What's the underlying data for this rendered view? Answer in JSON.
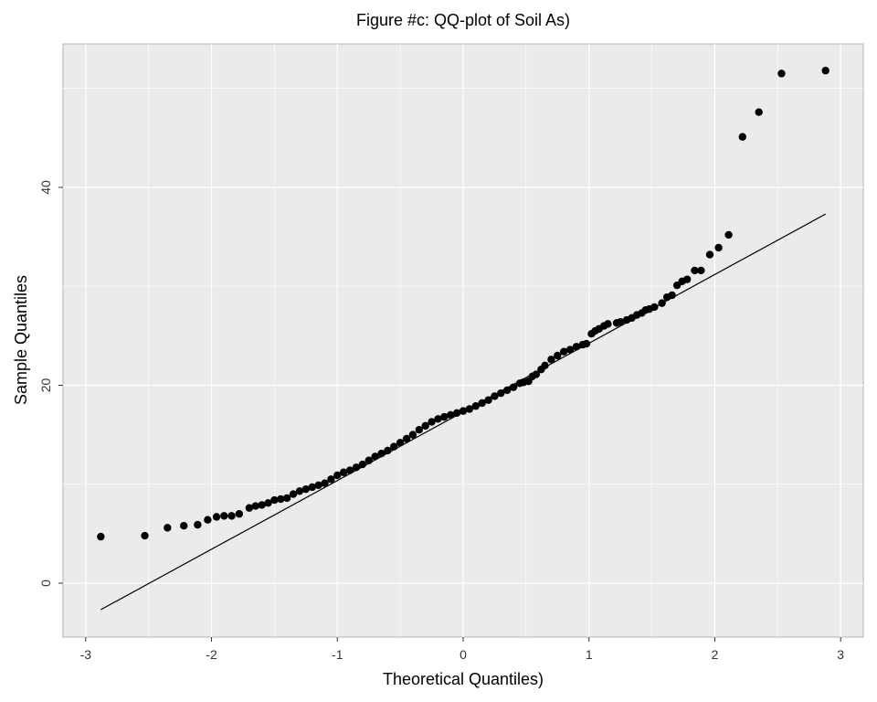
{
  "chart_data": {
    "type": "scatter",
    "title": "Figure #c: QQ-plot of Soil As)",
    "x_label": "Theoretical Quantiles)",
    "y_label": "Sample Quantiles",
    "xlim": [
      -3.18,
      3.18
    ],
    "ylim": [
      -5.45,
      54.5
    ],
    "xticks": [
      -3,
      -2,
      -1,
      0,
      1,
      2,
      3
    ],
    "yticks": [
      0,
      20,
      40
    ],
    "x_minor_grid": [
      -2.5,
      -1.5,
      -0.5,
      0.5,
      1.5,
      2.5
    ],
    "y_minor_grid": [
      10,
      30,
      50
    ],
    "grid": true,
    "panel_color": "#ebebeb",
    "series": [
      {
        "color": "#000000",
        "x": [
          -2.88,
          -2.53,
          -2.35,
          -2.22,
          -2.11,
          -2.03,
          -1.96,
          -1.9,
          -1.84,
          -1.78,
          -1.7,
          -1.65,
          -1.6,
          -1.55,
          -1.5,
          -1.45,
          -1.4,
          -1.35,
          -1.3,
          -1.25,
          -1.2,
          -1.15,
          -1.1,
          -1.05,
          -1.0,
          -0.95,
          -0.9,
          -0.85,
          -0.8,
          -0.75,
          -0.7,
          -0.65,
          -0.6,
          -0.55,
          -0.5,
          -0.45,
          -0.4,
          -0.35,
          -0.3,
          -0.25,
          -0.2,
          -0.15,
          -0.1,
          -0.05,
          0.0,
          0.05,
          0.1,
          0.15,
          0.2,
          0.25,
          0.3,
          0.35,
          0.4,
          0.45,
          0.48,
          0.52,
          0.55,
          0.58,
          0.62,
          0.65,
          0.7,
          0.75,
          0.8,
          0.85,
          0.9,
          0.95,
          0.98,
          1.02,
          1.05,
          1.08,
          1.12,
          1.15,
          1.22,
          1.25,
          1.3,
          1.34,
          1.38,
          1.42,
          1.45,
          1.48,
          1.52,
          1.58,
          1.62,
          1.66,
          1.7,
          1.74,
          1.78,
          1.84,
          1.89,
          1.96,
          2.03,
          2.11,
          2.22,
          2.35,
          2.53,
          2.88
        ],
        "values": [
          4.7,
          4.8,
          5.6,
          5.8,
          5.9,
          6.4,
          6.7,
          6.8,
          6.8,
          7.0,
          7.6,
          7.8,
          7.9,
          8.1,
          8.4,
          8.5,
          8.6,
          9.0,
          9.3,
          9.5,
          9.7,
          9.9,
          10.1,
          10.5,
          10.9,
          11.2,
          11.4,
          11.7,
          12.0,
          12.4,
          12.8,
          13.1,
          13.4,
          13.8,
          14.2,
          14.6,
          15.0,
          15.5,
          15.9,
          16.3,
          16.6,
          16.8,
          17.0,
          17.2,
          17.4,
          17.6,
          17.9,
          18.2,
          18.5,
          18.9,
          19.2,
          19.5,
          19.8,
          20.2,
          20.3,
          20.4,
          20.9,
          21.1,
          21.6,
          22.0,
          22.6,
          23.0,
          23.4,
          23.6,
          23.9,
          24.1,
          24.2,
          25.2,
          25.5,
          25.7,
          26.0,
          26.2,
          26.3,
          26.4,
          26.6,
          26.8,
          27.1,
          27.3,
          27.6,
          27.7,
          27.9,
          28.3,
          28.9,
          29.1,
          30.1,
          30.5,
          30.7,
          31.6,
          31.6,
          33.2,
          33.9,
          35.2,
          45.1,
          47.6,
          51.5,
          51.8
        ]
      }
    ],
    "reference_line": {
      "color": "#000000",
      "x": [
        -2.88,
        2.88
      ],
      "y": [
        -2.68,
        37.3
      ]
    }
  }
}
